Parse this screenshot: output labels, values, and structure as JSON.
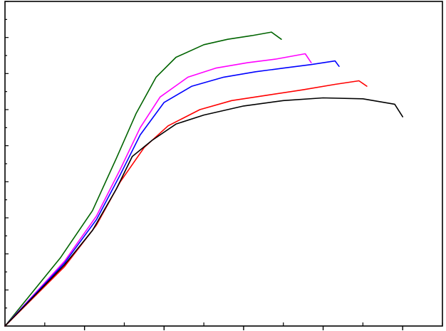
{
  "chart_data": {
    "type": "line",
    "title": "",
    "xlabel": "",
    "ylabel": "",
    "xlim": [
      0,
      11
    ],
    "ylim": [
      0,
      18
    ],
    "x_major_ticks": [
      0,
      2,
      4,
      6,
      8,
      10
    ],
    "x_minor_step": 1,
    "y_major_step": 2,
    "y_minor_step": 1,
    "grid": false,
    "legend": "none",
    "series": [
      {
        "color": "#006400",
        "points": [
          [
            0,
            0
          ],
          [
            1.4,
            3.8
          ],
          [
            2.2,
            6.4
          ],
          [
            2.8,
            9.3
          ],
          [
            3.3,
            11.8
          ],
          [
            3.8,
            13.8
          ],
          [
            4.3,
            14.9
          ],
          [
            5.0,
            15.6
          ],
          [
            5.6,
            15.9
          ],
          [
            6.2,
            16.1
          ],
          [
            6.7,
            16.3
          ],
          [
            6.95,
            15.9
          ]
        ]
      },
      {
        "color": "#ff00ff",
        "points": [
          [
            0,
            0
          ],
          [
            1.5,
            3.6
          ],
          [
            2.3,
            6.1
          ],
          [
            2.9,
            8.7
          ],
          [
            3.4,
            11.0
          ],
          [
            3.9,
            12.7
          ],
          [
            4.6,
            13.8
          ],
          [
            5.3,
            14.3
          ],
          [
            6.1,
            14.6
          ],
          [
            6.8,
            14.8
          ],
          [
            7.55,
            15.1
          ],
          [
            7.7,
            14.6
          ]
        ]
      },
      {
        "color": "#0000ff",
        "points": [
          [
            0,
            0
          ],
          [
            1.5,
            3.5
          ],
          [
            2.3,
            5.9
          ],
          [
            2.9,
            8.4
          ],
          [
            3.4,
            10.6
          ],
          [
            4.0,
            12.4
          ],
          [
            4.7,
            13.3
          ],
          [
            5.5,
            13.8
          ],
          [
            6.3,
            14.1
          ],
          [
            7.0,
            14.3
          ],
          [
            7.7,
            14.5
          ],
          [
            8.3,
            14.7
          ],
          [
            8.4,
            14.4
          ]
        ]
      },
      {
        "color": "#ff0000",
        "points": [
          [
            0,
            0
          ],
          [
            1.5,
            3.3
          ],
          [
            2.3,
            5.6
          ],
          [
            2.9,
            8.0
          ],
          [
            3.5,
            9.9
          ],
          [
            4.1,
            11.1
          ],
          [
            4.9,
            12.0
          ],
          [
            5.7,
            12.5
          ],
          [
            6.6,
            12.8
          ],
          [
            7.5,
            13.1
          ],
          [
            8.3,
            13.4
          ],
          [
            8.9,
            13.6
          ],
          [
            9.1,
            13.3
          ]
        ]
      },
      {
        "color": "#000000",
        "points": [
          [
            0,
            0
          ],
          [
            1.5,
            3.4
          ],
          [
            2.2,
            5.3
          ],
          [
            2.8,
            7.6
          ],
          [
            3.2,
            9.4
          ],
          [
            3.7,
            10.3
          ],
          [
            4.3,
            11.2
          ],
          [
            5.0,
            11.7
          ],
          [
            6.0,
            12.2
          ],
          [
            7.0,
            12.5
          ],
          [
            8.0,
            12.65
          ],
          [
            9.0,
            12.6
          ],
          [
            9.8,
            12.3
          ],
          [
            10.0,
            11.6
          ]
        ]
      }
    ]
  }
}
